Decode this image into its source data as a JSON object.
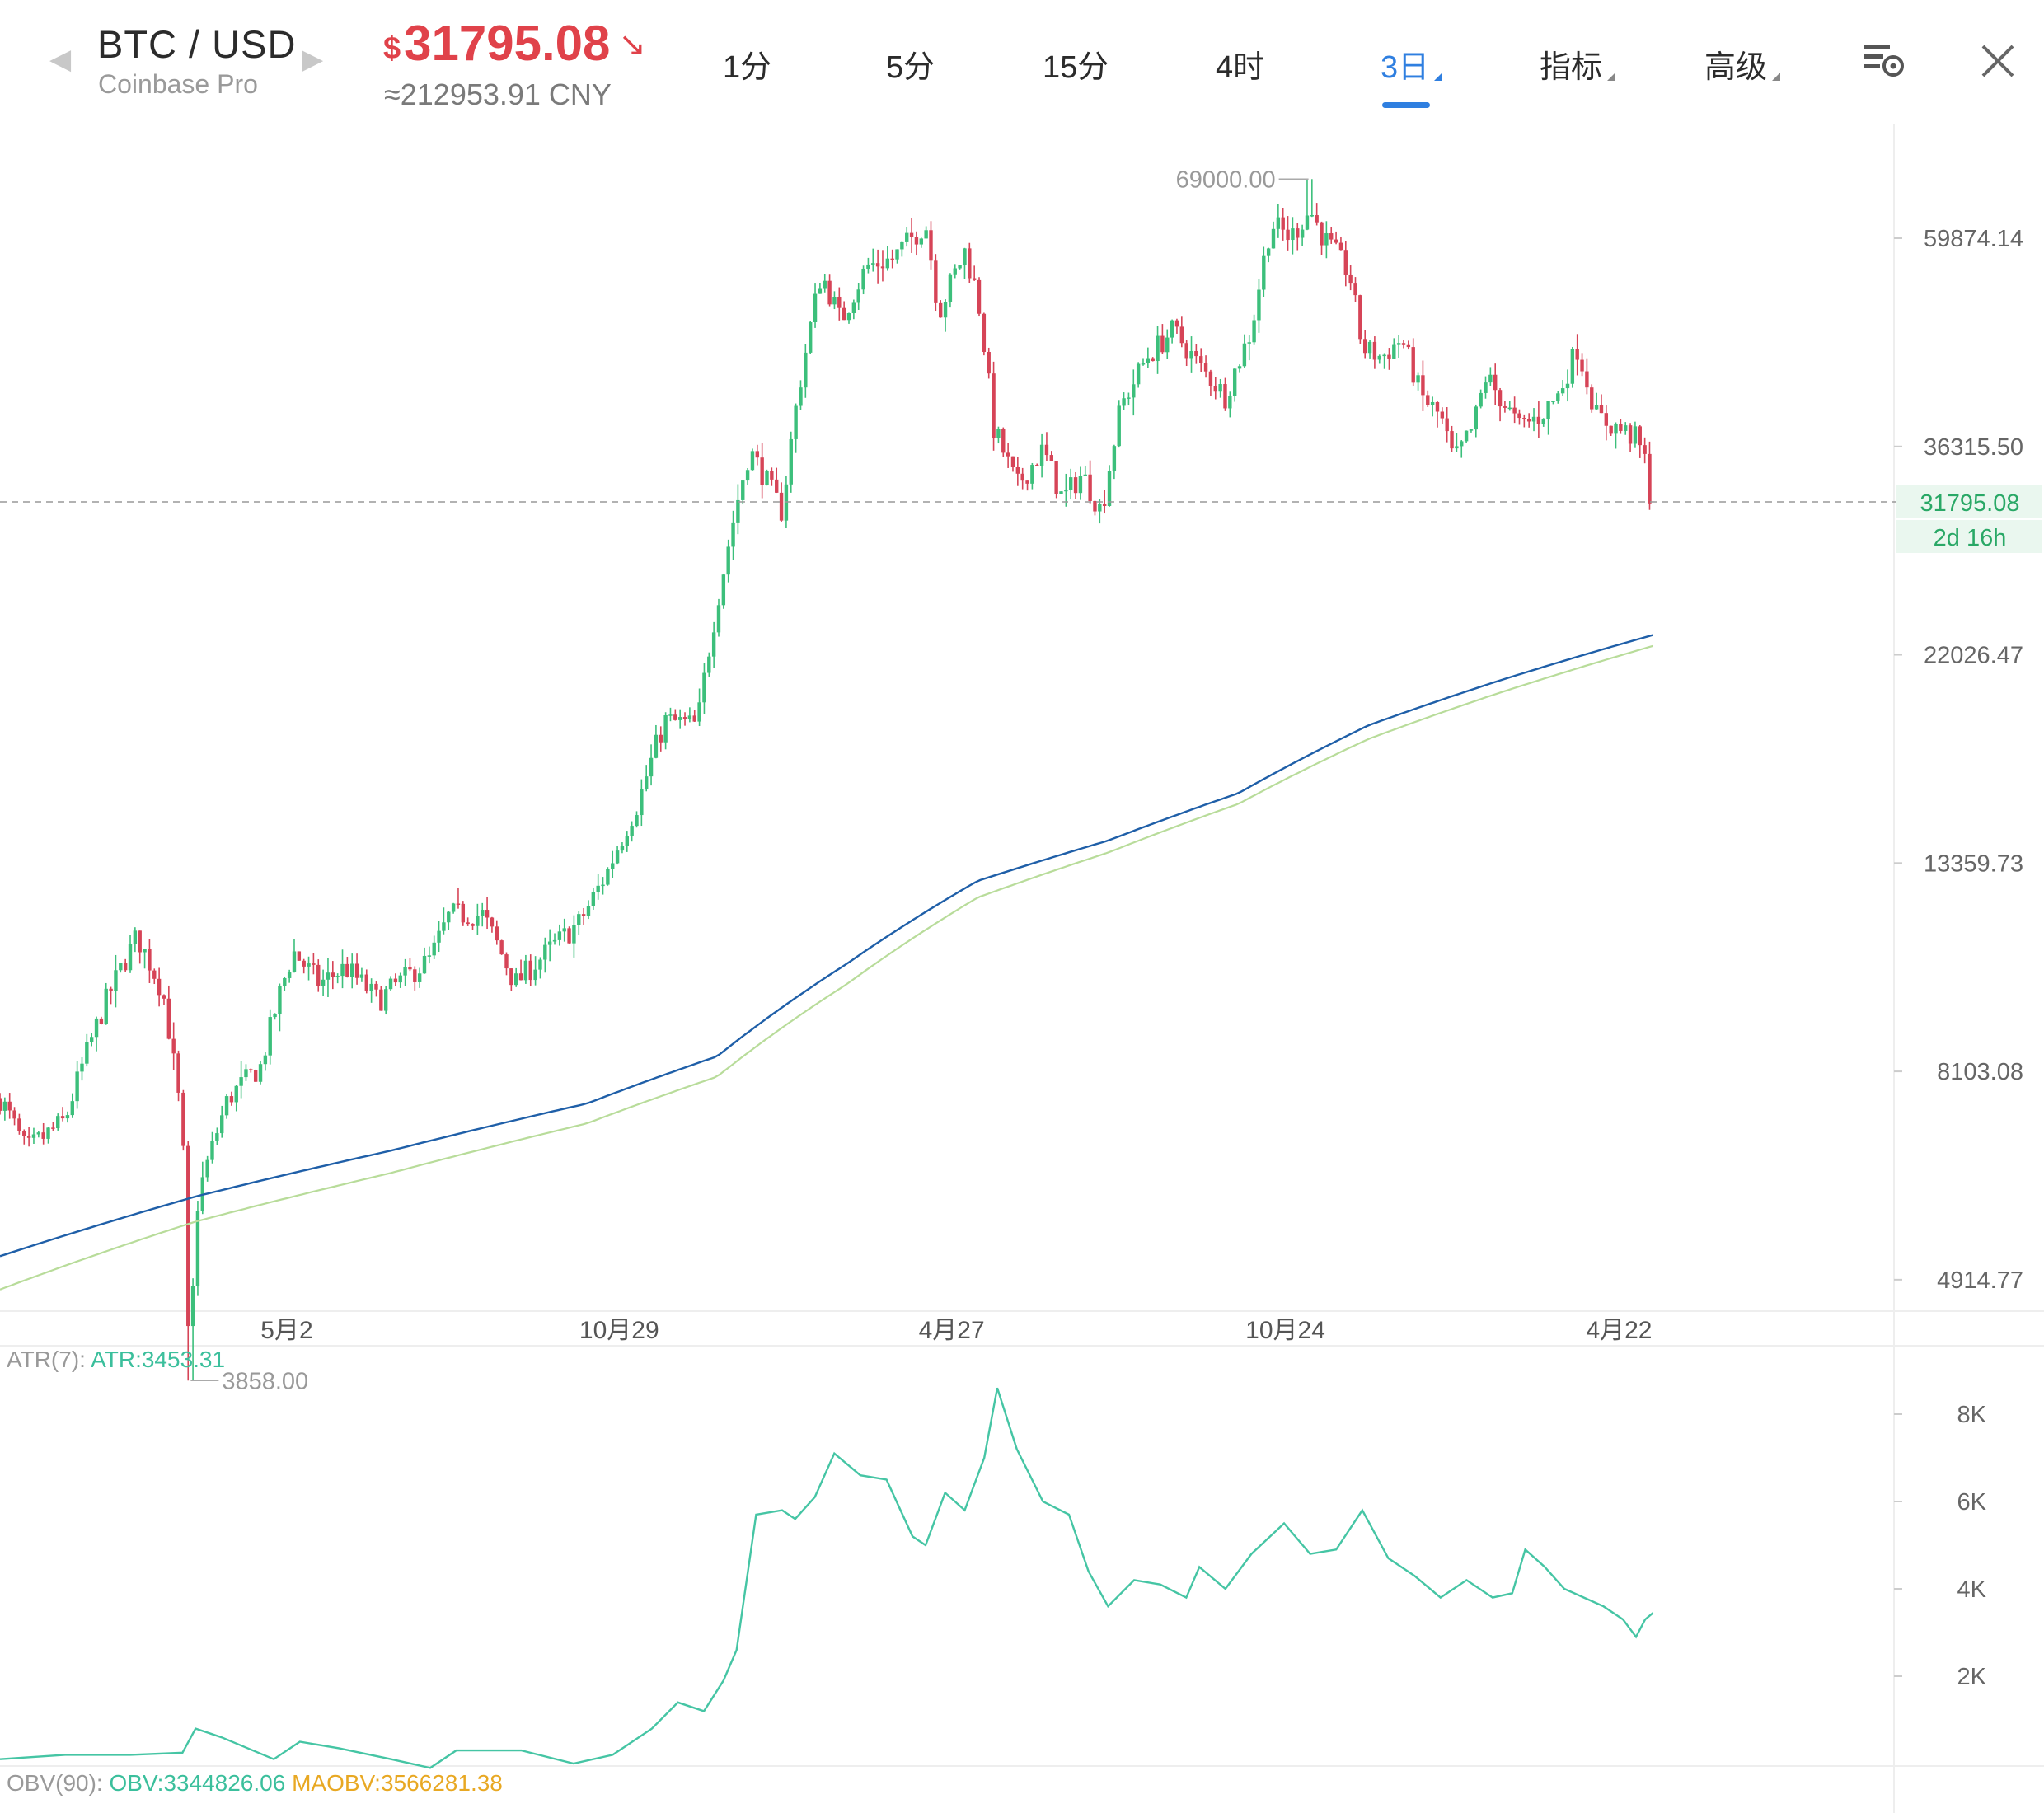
{
  "header": {
    "pair": "BTC / USD",
    "exchange": "Coinbase Pro",
    "price_currency": "$",
    "price": "31795.08",
    "price_trend_icon": "arrow-down-right-icon",
    "cny": "≈212953.91 CNY",
    "timeframes": [
      "1分",
      "5分",
      "15分",
      "4时",
      "3日",
      "指标",
      "高级"
    ],
    "active_timeframe": "3日",
    "settings_icon": "chart-settings-icon",
    "close_icon": "close-icon"
  },
  "colors": {
    "up": "#3cbf7b",
    "down": "#d64457",
    "accent": "#2f7fe0",
    "ma_slow": "#1f5fa8",
    "ma_fast": "#b8dc9a",
    "atr": "#45c5a4",
    "maobv": "#e8a823"
  },
  "chart_data": [
    {
      "type": "candlestick",
      "scale": "log",
      "interval": "3日",
      "y_ticks": [
        "59874.14",
        "36315.50",
        "22026.47",
        "13359.73",
        "8103.08",
        "4914.77"
      ],
      "x_ticks": [
        "5月2",
        "10月29",
        "4月27",
        "10月24",
        "4月22"
      ],
      "last_price": "31795.08",
      "countdown": "2d 16h",
      "annotations": {
        "high": "69000.00",
        "low": "3858.00"
      },
      "anchor_points": [
        [
          0,
          7600
        ],
        [
          20,
          6700
        ],
        [
          50,
          7200
        ],
        [
          80,
          9500
        ],
        [
          105,
          11200
        ],
        [
          125,
          9800
        ],
        [
          140,
          7000
        ],
        [
          145,
          3858
        ],
        [
          152,
          6000
        ],
        [
          175,
          7600
        ],
        [
          200,
          8200
        ],
        [
          215,
          9800
        ],
        [
          225,
          10800
        ],
        [
          245,
          10000
        ],
        [
          265,
          10400
        ],
        [
          290,
          9600
        ],
        [
          305,
          10000
        ],
        [
          330,
          10600
        ],
        [
          345,
          11800
        ],
        [
          370,
          11800
        ],
        [
          395,
          10000
        ],
        [
          420,
          10800
        ],
        [
          445,
          11600
        ],
        [
          465,
          13000
        ],
        [
          490,
          15500
        ],
        [
          510,
          18800
        ],
        [
          535,
          18600
        ],
        [
          555,
          27000
        ],
        [
          575,
          36000
        ],
        [
          590,
          33000
        ],
        [
          600,
          31000
        ],
        [
          612,
          41000
        ],
        [
          630,
          55000
        ],
        [
          645,
          49000
        ],
        [
          665,
          56000
        ],
        [
          685,
          57000
        ],
        [
          710,
          62000
        ],
        [
          720,
          50000
        ],
        [
          740,
          58000
        ],
        [
          750,
          52000
        ],
        [
          762,
          38000
        ],
        [
          780,
          33000
        ],
        [
          800,
          36000
        ],
        [
          815,
          32000
        ],
        [
          830,
          34000
        ],
        [
          845,
          31000
        ],
        [
          860,
          40000
        ],
        [
          880,
          45000
        ],
        [
          900,
          48000
        ],
        [
          920,
          44000
        ],
        [
          940,
          41000
        ],
        [
          960,
          48000
        ],
        [
          975,
          62000
        ],
        [
          990,
          60000
        ],
        [
          1005,
          64000
        ],
        [
          1015,
          60000
        ],
        [
          1035,
          55000
        ],
        [
          1045,
          46000
        ],
        [
          1060,
          45000
        ],
        [
          1075,
          47000
        ],
        [
          1090,
          41000
        ],
        [
          1105,
          39000
        ],
        [
          1115,
          35000
        ],
        [
          1130,
          38000
        ],
        [
          1140,
          43000
        ],
        [
          1155,
          40000
        ],
        [
          1165,
          38000
        ],
        [
          1180,
          39000
        ],
        [
          1195,
          41000
        ],
        [
          1210,
          46000
        ],
        [
          1225,
          39000
        ],
        [
          1240,
          38000
        ],
        [
          1255,
          37000
        ],
        [
          1262,
          35000
        ],
        [
          1268,
          30500
        ]
      ],
      "ma_slow_anchors": [
        [
          0,
          5200
        ],
        [
          150,
          6000
        ],
        [
          300,
          6700
        ],
        [
          450,
          7500
        ],
        [
          550,
          8400
        ],
        [
          650,
          10500
        ],
        [
          750,
          12800
        ],
        [
          850,
          14100
        ],
        [
          950,
          15800
        ],
        [
          1050,
          18600
        ],
        [
          1150,
          20700
        ],
        [
          1268,
          23100
        ]
      ],
      "ma_fast_anchors": [
        [
          0,
          4800
        ],
        [
          150,
          5650
        ],
        [
          300,
          6350
        ],
        [
          450,
          7150
        ],
        [
          550,
          8000
        ],
        [
          650,
          10000
        ],
        [
          750,
          12300
        ],
        [
          850,
          13700
        ],
        [
          950,
          15400
        ],
        [
          1050,
          18000
        ],
        [
          1150,
          20100
        ],
        [
          1268,
          22500
        ]
      ]
    },
    {
      "type": "line",
      "name": "ATR",
      "label_name": "ATR(7):",
      "label_value": "ATR:3453.31",
      "y_ticks": [
        "8K",
        "6K",
        "4K",
        "2K"
      ],
      "anchor_points": [
        [
          0,
          100
        ],
        [
          50,
          200
        ],
        [
          100,
          200
        ],
        [
          140,
          250
        ],
        [
          150,
          800
        ],
        [
          170,
          600
        ],
        [
          210,
          100
        ],
        [
          230,
          500
        ],
        [
          260,
          350
        ],
        [
          300,
          100
        ],
        [
          330,
          -100
        ],
        [
          350,
          300
        ],
        [
          400,
          300
        ],
        [
          440,
          0
        ],
        [
          470,
          200
        ],
        [
          500,
          800
        ],
        [
          520,
          1400
        ],
        [
          540,
          1200
        ],
        [
          555,
          1900
        ],
        [
          565,
          2600
        ],
        [
          580,
          5700
        ],
        [
          600,
          5800
        ],
        [
          610,
          5600
        ],
        [
          625,
          6100
        ],
        [
          640,
          7100
        ],
        [
          660,
          6600
        ],
        [
          680,
          6500
        ],
        [
          700,
          5200
        ],
        [
          710,
          5000
        ],
        [
          725,
          6200
        ],
        [
          740,
          5800
        ],
        [
          755,
          7000
        ],
        [
          765,
          8600
        ],
        [
          780,
          7200
        ],
        [
          800,
          6000
        ],
        [
          820,
          5700
        ],
        [
          835,
          4400
        ],
        [
          850,
          3600
        ],
        [
          870,
          4200
        ],
        [
          890,
          4100
        ],
        [
          910,
          3800
        ],
        [
          920,
          4500
        ],
        [
          940,
          4000
        ],
        [
          960,
          4800
        ],
        [
          985,
          5500
        ],
        [
          1005,
          4800
        ],
        [
          1025,
          4900
        ],
        [
          1045,
          5800
        ],
        [
          1065,
          4700
        ],
        [
          1085,
          4300
        ],
        [
          1105,
          3800
        ],
        [
          1125,
          4200
        ],
        [
          1145,
          3800
        ],
        [
          1160,
          3900
        ],
        [
          1170,
          4900
        ],
        [
          1185,
          4500
        ],
        [
          1200,
          4000
        ],
        [
          1215,
          3800
        ],
        [
          1230,
          3600
        ],
        [
          1245,
          3300
        ],
        [
          1255,
          2900
        ],
        [
          1262,
          3300
        ],
        [
          1268,
          3450
        ]
      ]
    },
    {
      "type": "line",
      "name": "OBV",
      "label_name": "OBV(90):",
      "label_value": "OBV:3344826.06",
      "label_ma": "MAOBV:3566281.38"
    }
  ]
}
